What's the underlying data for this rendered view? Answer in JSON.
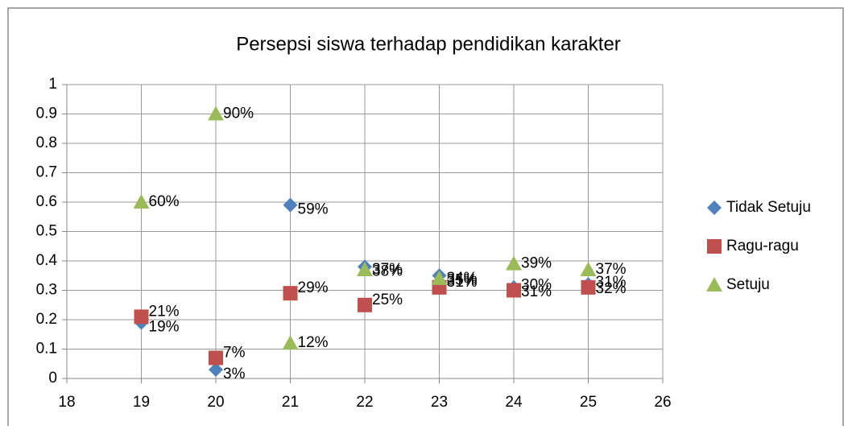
{
  "chart_data": {
    "type": "scatter",
    "title": "Persepsi siswa terhadap pendidikan karakter",
    "x": [
      19,
      20,
      21,
      22,
      23,
      24,
      25
    ],
    "series": [
      {
        "name": "Tidak Setuju",
        "color": "#4f81bd",
        "marker": "diamond",
        "values": [
          0.19,
          0.03,
          0.59,
          0.38,
          0.35,
          0.31,
          0.32
        ],
        "value_labels": [
          "19%",
          "3%",
          "59%",
          "38%",
          "35%",
          "31%",
          "32%"
        ]
      },
      {
        "name": "Ragu-ragu",
        "color": "#c0504d",
        "marker": "square",
        "values": [
          0.21,
          0.07,
          0.29,
          0.25,
          0.31,
          0.3,
          0.31
        ],
        "value_labels": [
          "21%",
          "7%",
          "29%",
          "25%",
          "31%",
          "30%",
          "31%"
        ]
      },
      {
        "name": "Setuju",
        "color": "#9bbb59",
        "marker": "triangle",
        "values": [
          0.6,
          0.9,
          0.12,
          0.37,
          0.34,
          0.39,
          0.37
        ],
        "value_labels": [
          "60%",
          "90%",
          "12%",
          "37%",
          "34%",
          "39%",
          "37%"
        ]
      }
    ],
    "xlim": [
      18,
      26
    ],
    "xticks": [
      18,
      19,
      20,
      21,
      22,
      23,
      24,
      25,
      26
    ],
    "ylim": [
      0,
      1
    ],
    "yticks": [
      0,
      0.1,
      0.2,
      0.3,
      0.4,
      0.5,
      0.6,
      0.7,
      0.8,
      0.9,
      1
    ],
    "grid": true,
    "legend": "right"
  }
}
